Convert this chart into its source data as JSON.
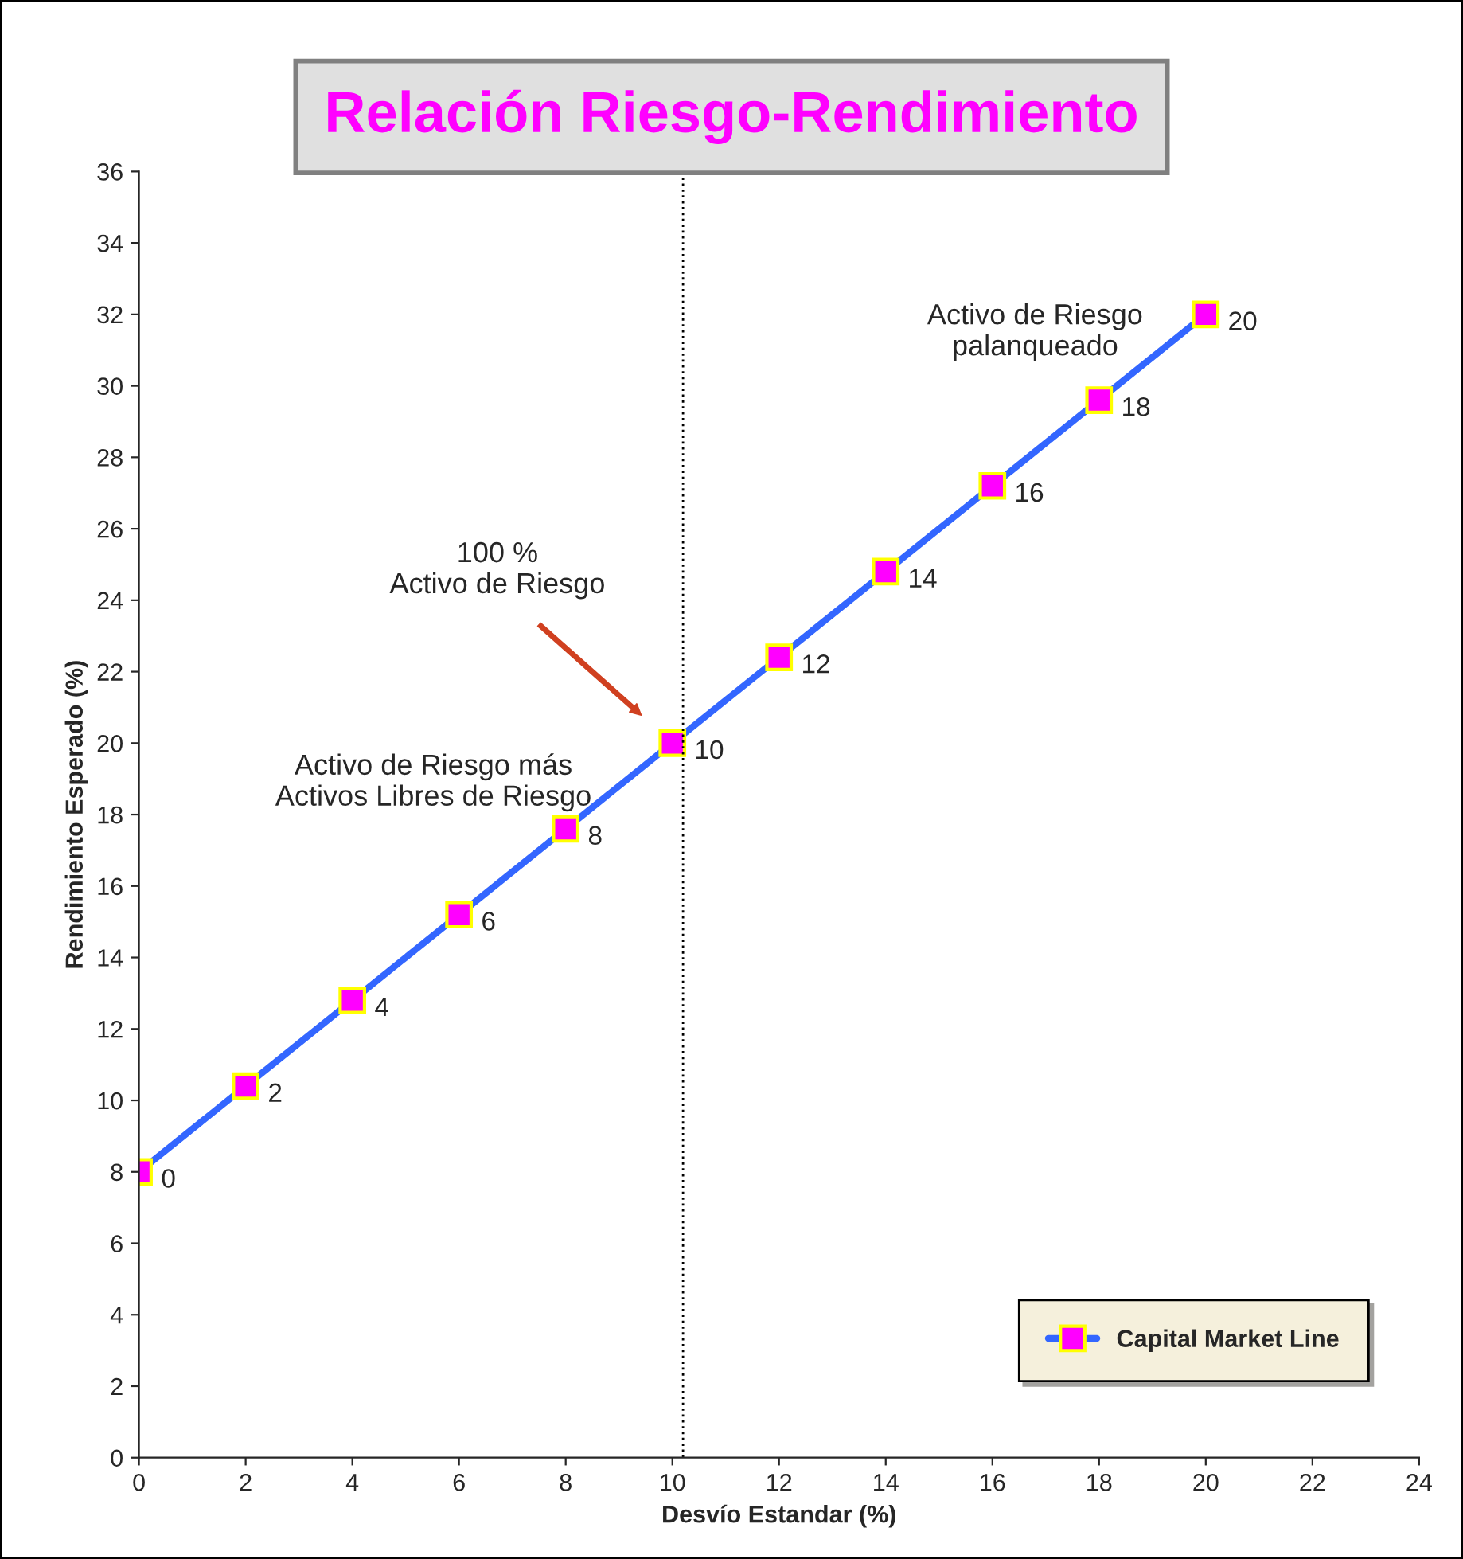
{
  "chart_data": {
    "type": "line",
    "title": "Relación Riesgo-Rendimiento",
    "xlabel": "Desvío Estandar (%)",
    "ylabel": "Rendimiento Esperado (%)",
    "x": [
      0,
      2,
      4,
      6,
      8,
      10,
      12,
      14,
      16,
      18,
      20
    ],
    "series": [
      {
        "name": "Capital Market Line",
        "color": "#3366ff",
        "values": [
          8,
          10.4,
          12.8,
          15.2,
          17.6,
          20,
          22.4,
          24.8,
          27.2,
          29.6,
          32
        ]
      }
    ],
    "marker": "square",
    "line_style": "solid",
    "grid": false,
    "legend": "bottom right",
    "xlim": [
      0,
      24
    ],
    "xticks": [
      0,
      2,
      4,
      6,
      8,
      10,
      12,
      14,
      16,
      18,
      20,
      22,
      24
    ],
    "ylim": [
      0,
      36
    ],
    "yticks": [
      0,
      2,
      4,
      6,
      8,
      10,
      12,
      14,
      16,
      18,
      20,
      22,
      24,
      26,
      28,
      30,
      32,
      34,
      36
    ],
    "ref_lines": [
      {
        "axis": "x",
        "value": 10.2,
        "color": "#000000",
        "line_style": "dotted"
      }
    ],
    "annotations": [
      "100 %\nActivo de Riesgo",
      "Activo de Riesgo más\nActivos Libres de Riesgo",
      "Activo de Riesgo\npalanqueado",
      {
        "text": "0",
        "x": 0,
        "y": 8
      },
      {
        "text": "2",
        "x": 2,
        "y": 10.4
      },
      {
        "text": "4",
        "x": 4,
        "y": 12.8
      },
      {
        "text": "6",
        "x": 6,
        "y": 15.2
      },
      {
        "text": "8",
        "x": 8,
        "y": 17.6
      },
      {
        "text": "10",
        "x": 10,
        "y": 20
      },
      {
        "text": "12",
        "x": 12,
        "y": 22.4
      },
      {
        "text": "14",
        "x": 14,
        "y": 24.8
      },
      {
        "text": "16",
        "x": 16,
        "y": 27.2
      },
      {
        "text": "18",
        "x": 18,
        "y": 29.6
      },
      {
        "text": "20",
        "x": 20,
        "y": 32
      }
    ]
  }
}
